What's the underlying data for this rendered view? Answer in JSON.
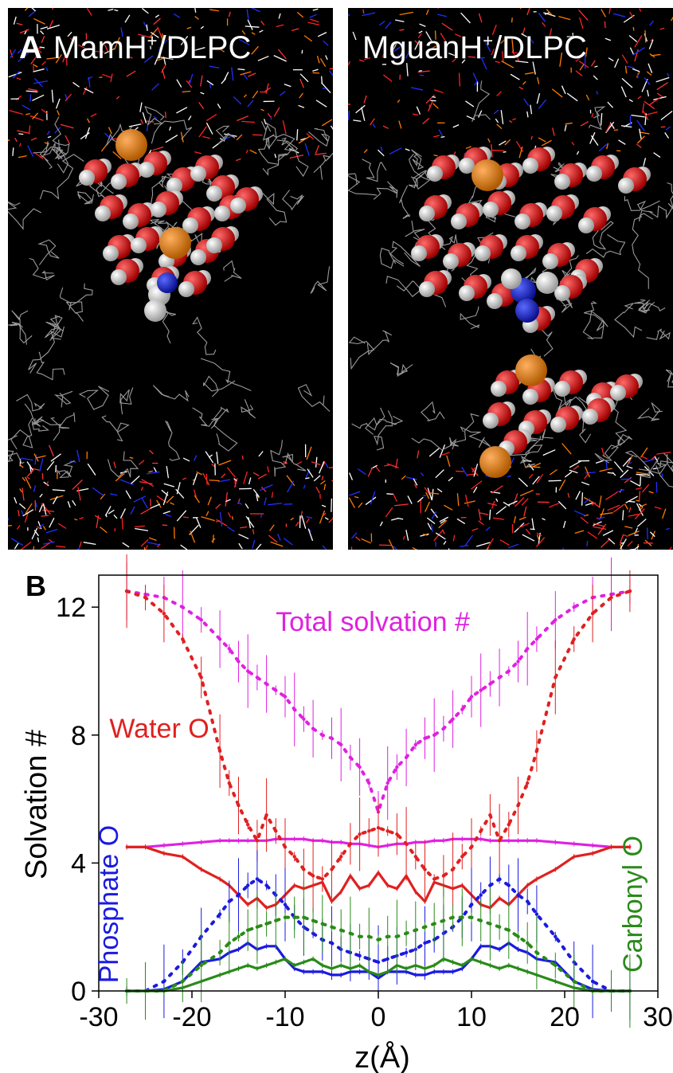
{
  "panelA": {
    "letter": "A",
    "left_label": {
      "prefix": "MamH",
      "sup": "+",
      "suffix": "/DLPC"
    },
    "right_label": {
      "prefix": "MguanH",
      "sup": "+",
      "suffix": "/DLPC"
    }
  },
  "colors": {
    "total": "#e020e0",
    "water": "#e02020",
    "phosphate": "#1a1ae0",
    "carbonyl": "#2a8a1a",
    "axis": "#000000"
  },
  "chart_data": {
    "type": "line",
    "panel_letter": "B",
    "xlabel": "z(Å)",
    "ylabel": "Solvation #",
    "xlim": [
      -30,
      30
    ],
    "ylim": [
      0,
      13
    ],
    "xticks": [
      -30,
      -20,
      -10,
      0,
      10,
      20,
      30
    ],
    "yticks": [
      0,
      4,
      8,
      12
    ],
    "annotations": {
      "total": "Total solvation #",
      "water": "Water O",
      "phosphate": "Phosphate O",
      "carbonyl": "Carbonyl O"
    },
    "x": [
      -27,
      -25,
      -23,
      -21,
      -19,
      -17,
      -16,
      -15,
      -14,
      -13,
      -12,
      -11,
      -10,
      -9,
      -8,
      -7,
      -6,
      -5,
      -4,
      -3,
      -2,
      -1,
      0,
      1,
      2,
      3,
      4,
      5,
      6,
      7,
      8,
      9,
      10,
      11,
      12,
      13,
      14,
      15,
      16,
      17,
      19,
      21,
      23,
      25,
      27
    ],
    "series": [
      {
        "key": "total",
        "style": "solid",
        "values": [
          4.5,
          4.5,
          4.55,
          4.6,
          4.65,
          4.7,
          4.7,
          4.7,
          4.7,
          4.7,
          4.7,
          4.75,
          4.75,
          4.75,
          4.75,
          4.7,
          4.7,
          4.65,
          4.65,
          4.6,
          4.6,
          4.55,
          4.5,
          4.55,
          4.6,
          4.6,
          4.65,
          4.65,
          4.7,
          4.7,
          4.75,
          4.75,
          4.75,
          4.75,
          4.7,
          4.7,
          4.7,
          4.7,
          4.7,
          4.7,
          4.65,
          4.6,
          4.55,
          4.5,
          4.5
        ]
      },
      {
        "key": "total",
        "style": "dotted",
        "values": [
          12.5,
          12.4,
          12.3,
          12.0,
          11.6,
          11.0,
          10.7,
          10.3,
          10.0,
          9.8,
          9.6,
          9.4,
          9.2,
          8.8,
          8.5,
          8.2,
          8.0,
          7.9,
          7.7,
          7.3,
          7.0,
          6.5,
          5.6,
          6.5,
          7.0,
          7.3,
          7.7,
          7.9,
          8.0,
          8.2,
          8.5,
          8.8,
          9.2,
          9.4,
          9.6,
          9.8,
          10.0,
          10.3,
          10.7,
          11.0,
          11.6,
          12.0,
          12.3,
          12.4,
          12.5
        ]
      },
      {
        "key": "water",
        "style": "solid",
        "values": [
          4.5,
          4.5,
          4.3,
          4.2,
          3.8,
          3.5,
          3.3,
          3.0,
          2.7,
          2.9,
          2.6,
          2.7,
          3.0,
          3.3,
          3.2,
          3.3,
          3.4,
          2.8,
          3.1,
          3.6,
          3.2,
          3.3,
          3.7,
          3.3,
          3.2,
          3.6,
          3.1,
          2.8,
          3.4,
          3.3,
          3.2,
          3.3,
          3.0,
          2.7,
          2.6,
          2.9,
          2.7,
          3.0,
          3.3,
          3.5,
          3.8,
          4.2,
          4.3,
          4.5,
          4.5
        ]
      },
      {
        "key": "water",
        "style": "dotted",
        "values": [
          12.5,
          12.3,
          11.8,
          11.0,
          9.8,
          7.5,
          6.5,
          5.8,
          5.2,
          4.7,
          5.5,
          5.0,
          4.5,
          4.2,
          3.8,
          3.6,
          3.5,
          3.8,
          4.2,
          4.6,
          4.9,
          5.0,
          5.1,
          5.0,
          4.9,
          4.6,
          4.2,
          3.8,
          3.5,
          3.6,
          3.8,
          4.2,
          4.5,
          5.0,
          5.5,
          4.7,
          5.2,
          5.8,
          6.5,
          7.5,
          9.8,
          11.0,
          11.8,
          12.3,
          12.5
        ]
      },
      {
        "key": "phosphate",
        "style": "solid",
        "values": [
          0,
          0,
          0.05,
          0.3,
          0.9,
          1.0,
          1.2,
          1.3,
          1.5,
          1.3,
          1.4,
          1.4,
          1.0,
          0.7,
          0.6,
          0.6,
          0.6,
          0.5,
          0.5,
          0.6,
          0.6,
          0.6,
          0.4,
          0.6,
          0.6,
          0.6,
          0.5,
          0.5,
          0.6,
          0.6,
          0.6,
          0.7,
          1.0,
          1.4,
          1.4,
          1.3,
          1.5,
          1.3,
          1.2,
          1.0,
          0.9,
          0.3,
          0.05,
          0,
          0
        ]
      },
      {
        "key": "phosphate",
        "style": "dotted",
        "values": [
          0,
          0,
          0.3,
          0.9,
          1.7,
          2.4,
          2.8,
          3.0,
          3.3,
          3.5,
          3.3,
          3.0,
          2.7,
          2.3,
          2.0,
          1.8,
          1.6,
          1.5,
          1.3,
          1.2,
          1.1,
          1.0,
          0.9,
          1.0,
          1.1,
          1.2,
          1.3,
          1.5,
          1.6,
          1.8,
          2.0,
          2.3,
          2.7,
          3.0,
          3.3,
          3.5,
          3.3,
          3.0,
          2.8,
          2.4,
          1.7,
          0.9,
          0.3,
          0,
          0
        ]
      },
      {
        "key": "carbonyl",
        "style": "solid",
        "values": [
          0,
          0,
          0,
          0.1,
          0.3,
          0.5,
          0.6,
          0.7,
          0.8,
          0.7,
          0.8,
          0.9,
          1.0,
          0.8,
          0.9,
          1.0,
          0.8,
          0.7,
          0.8,
          0.7,
          0.8,
          0.6,
          0.5,
          0.6,
          0.8,
          0.7,
          0.8,
          0.7,
          0.8,
          1.0,
          0.9,
          0.8,
          1.0,
          0.9,
          0.8,
          0.7,
          0.8,
          0.7,
          0.6,
          0.5,
          0.3,
          0.1,
          0,
          0,
          0
        ]
      },
      {
        "key": "carbonyl",
        "style": "dotted",
        "values": [
          0,
          0,
          0,
          0.3,
          0.8,
          1.2,
          1.5,
          1.7,
          1.9,
          2.0,
          2.1,
          2.2,
          2.3,
          2.3,
          2.3,
          2.2,
          2.1,
          2.0,
          1.9,
          1.8,
          1.7,
          1.7,
          1.6,
          1.7,
          1.7,
          1.8,
          1.9,
          2.0,
          2.1,
          2.2,
          2.3,
          2.3,
          2.3,
          2.2,
          2.1,
          2.0,
          1.9,
          1.7,
          1.5,
          1.2,
          0.8,
          0.3,
          0,
          0,
          0
        ]
      }
    ]
  }
}
